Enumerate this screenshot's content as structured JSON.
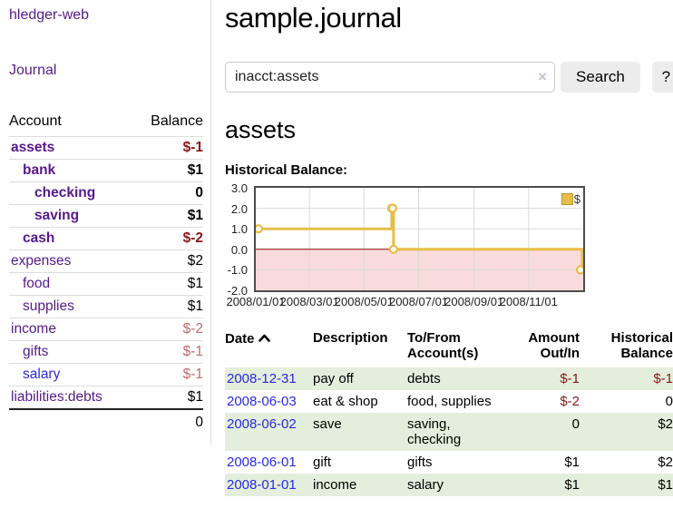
{
  "app": {
    "title": "hledger-web"
  },
  "sidebar": {
    "journal_label": "Journal",
    "accounts": {
      "header_account": "Account",
      "header_balance": "Balance",
      "rows": [
        {
          "account": "assets",
          "balance": "$-1",
          "depth": 1,
          "current": true,
          "neg_strong": true
        },
        {
          "account": "bank",
          "balance": "$1",
          "depth": 2,
          "current": true
        },
        {
          "account": "checking",
          "balance": "0",
          "depth": 3,
          "current": true
        },
        {
          "account": "saving",
          "balance": "$1",
          "depth": 3,
          "current": true
        },
        {
          "account": "cash",
          "balance": "$-2",
          "depth": 2,
          "current": true,
          "neg_strong": true
        },
        {
          "account": "expenses",
          "balance": "$2",
          "depth": 1
        },
        {
          "account": "food",
          "balance": "$1",
          "depth": 2
        },
        {
          "account": "supplies",
          "balance": "$1",
          "depth": 2
        },
        {
          "account": "income",
          "balance": "$-2",
          "depth": 1,
          "neg_muted": true
        },
        {
          "account": "gifts",
          "balance": "$-1",
          "depth": 2,
          "neg_muted": true
        },
        {
          "account": "salary",
          "balance": "$-1",
          "depth": 2,
          "neg_muted": true,
          "blue": true
        },
        {
          "account": "liabilities:debts",
          "balance": "$1",
          "depth": 1
        }
      ],
      "total": "0"
    }
  },
  "main": {
    "title": "sample.journal",
    "search": {
      "value": "inacct:assets",
      "clear_icon": "×",
      "button_label": "Search",
      "help_label": "?"
    },
    "account_heading": "assets",
    "chart_label": "Historical Balance:"
  },
  "chart_data": {
    "type": "line",
    "step": true,
    "title": "Historical Balance",
    "x_range": [
      "2008-01-01",
      "2009-01-01"
    ],
    "ylim": [
      -2,
      3
    ],
    "y_ticks": [
      {
        "v": 3,
        "label": "3.0"
      },
      {
        "v": 2,
        "label": "2.0"
      },
      {
        "v": 1,
        "label": "1.0"
      },
      {
        "v": 0,
        "label": "0.0"
      },
      {
        "v": -1,
        "label": "-1.0"
      },
      {
        "v": -2,
        "label": "-2.0"
      }
    ],
    "x_ticks": [
      {
        "date": "2008-01-01",
        "label": "2008/01/01"
      },
      {
        "date": "2008-03-01",
        "label": "2008/03/01"
      },
      {
        "date": "2008-05-01",
        "label": "2008/05/01"
      },
      {
        "date": "2008-07-01",
        "label": "2008/07/01"
      },
      {
        "date": "2008-09-01",
        "label": "2008/09/01"
      },
      {
        "date": "2008-11-01",
        "label": "2008/11/01"
      }
    ],
    "grid_dates": [
      "2008-03-01",
      "2008-05-01",
      "2008-07-01",
      "2008-09-01",
      "2008-11-01"
    ],
    "legend_position": "top-right",
    "series": [
      {
        "name": "$",
        "points": [
          {
            "x": "2008-01-01",
            "y": 1
          },
          {
            "x": "2008-06-01",
            "y": 2
          },
          {
            "x": "2008-06-02",
            "y": 2
          },
          {
            "x": "2008-06-03",
            "y": 0
          },
          {
            "x": "2008-12-31",
            "y": -1
          }
        ]
      }
    ],
    "colors": {
      "line": "#e7bd4a",
      "marker_fill": "#ffffff",
      "zero_line": "#8b0000",
      "negative_fill": "#f9dbdb",
      "grid": "#d9d9d9",
      "plot_border": "#4c4c4c"
    }
  },
  "register": {
    "headers": {
      "date": "Date",
      "description": "Description",
      "accounts": "To/From Account(s)",
      "amount": "Amount Out/In",
      "balance": "Historical Balance"
    },
    "rows": [
      {
        "date": "2008-12-31",
        "description": "pay off",
        "accounts": "debts",
        "amount": "$-1",
        "amount_neg": true,
        "balance": "$-1",
        "balance_neg": true,
        "shaded": true
      },
      {
        "date": "2008-06-03",
        "description": "eat & shop",
        "accounts": "food, supplies",
        "amount": "$-2",
        "amount_neg": true,
        "balance": "0",
        "balance_neg": false,
        "shaded": false
      },
      {
        "date": "2008-06-02",
        "description": "save",
        "accounts": "saving, checking",
        "amount": "0",
        "amount_neg": false,
        "balance": "$2",
        "balance_neg": false,
        "shaded": true
      },
      {
        "date": "2008-06-01",
        "description": "gift",
        "accounts": "gifts",
        "amount": "$1",
        "amount_neg": false,
        "balance": "$2",
        "balance_neg": false,
        "shaded": false
      },
      {
        "date": "2008-01-01",
        "description": "income",
        "accounts": "salary",
        "amount": "$1",
        "amount_neg": false,
        "balance": "$1",
        "balance_neg": false,
        "shaded": true
      }
    ]
  }
}
